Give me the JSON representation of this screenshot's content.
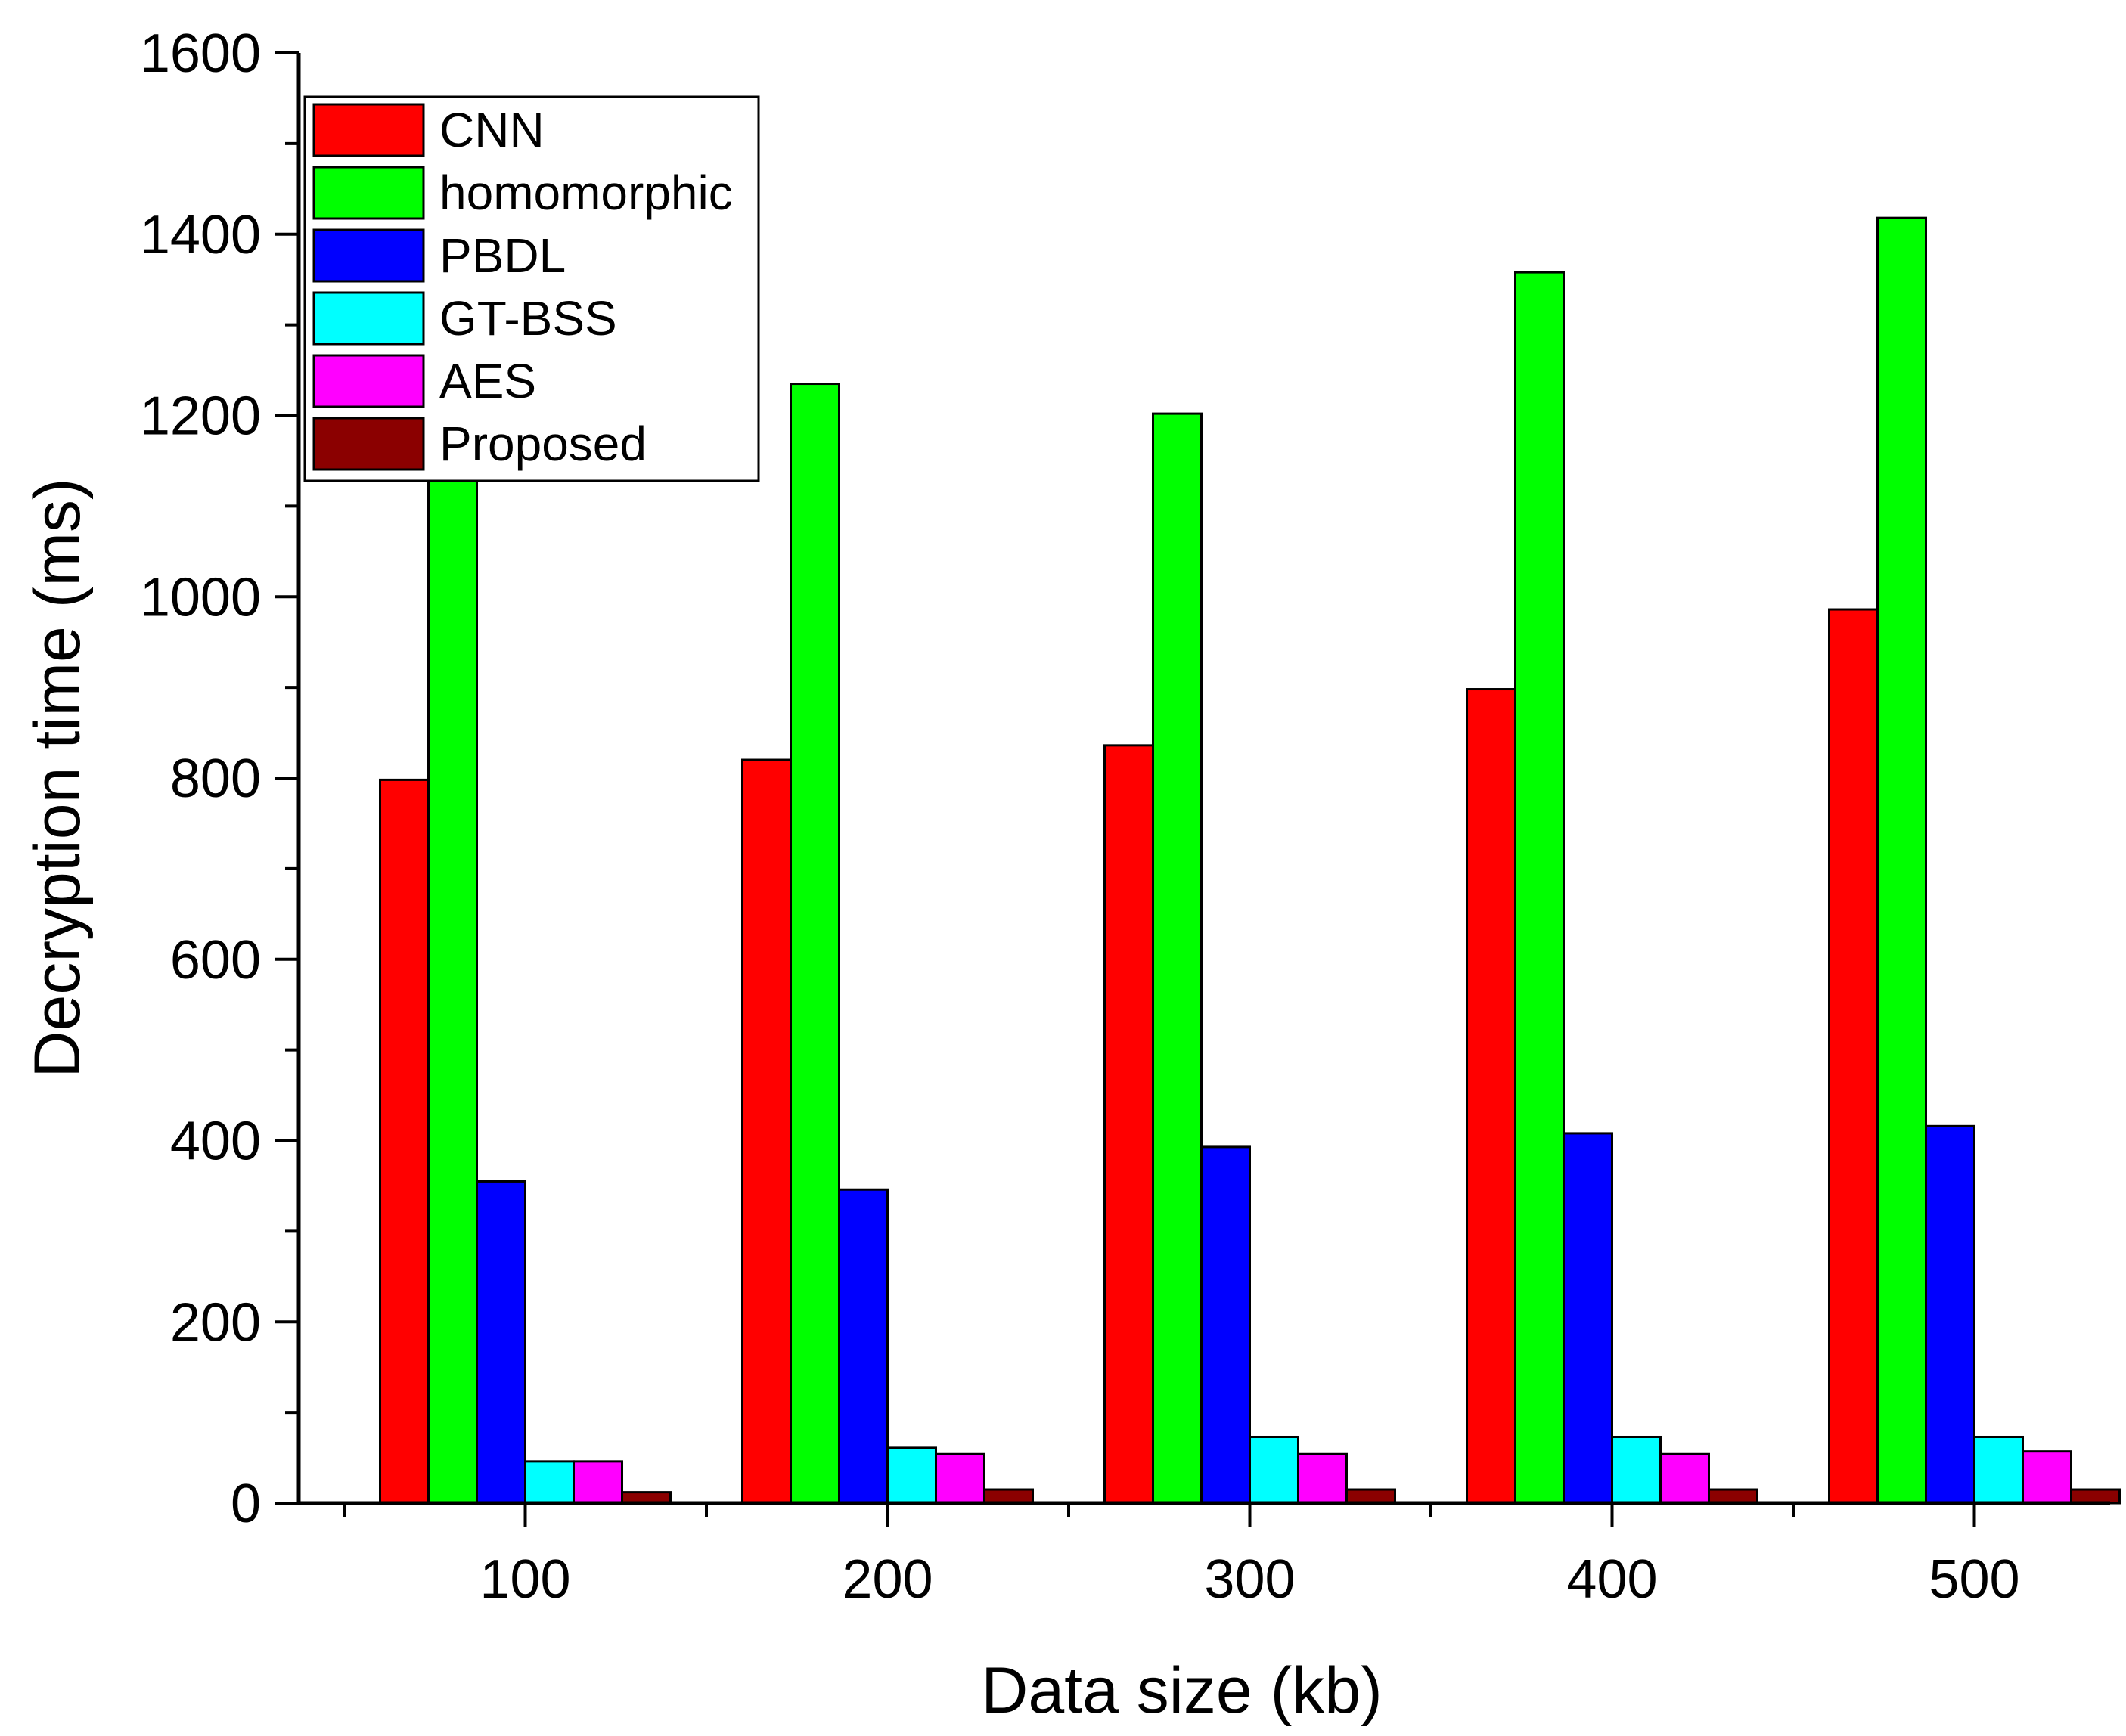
{
  "chart_data": {
    "type": "bar",
    "title": "",
    "xlabel": "Data size (kb)",
    "ylabel": "Decryption time (ms)",
    "ylim": [
      0,
      1600
    ],
    "yticks": [
      "0",
      "200",
      "400",
      "600",
      "800",
      "1000",
      "1200",
      "1400",
      "1600"
    ],
    "categories": [
      "100",
      "200",
      "300",
      "400",
      "500"
    ],
    "legend_position": "top-left",
    "series": [
      {
        "name": "CNN",
        "color": "#ff0000",
        "values": [
          798,
          820,
          836,
          898,
          986
        ]
      },
      {
        "name": "homomorphic",
        "color": "#00ff00",
        "values": [
          1150,
          1235,
          1202,
          1358,
          1418
        ]
      },
      {
        "name": "PBDL",
        "color": "#0000ff",
        "values": [
          355,
          346,
          393,
          408,
          416
        ]
      },
      {
        "name": "GT-BSS",
        "color": "#00ffff",
        "values": [
          46,
          61,
          73,
          73,
          73
        ]
      },
      {
        "name": "AES",
        "color": "#ff00ff",
        "values": [
          46,
          54,
          54,
          54,
          57
        ]
      },
      {
        "name": "Proposed",
        "color": "#8b0000",
        "values": [
          12,
          15,
          15,
          15,
          15
        ]
      }
    ]
  }
}
